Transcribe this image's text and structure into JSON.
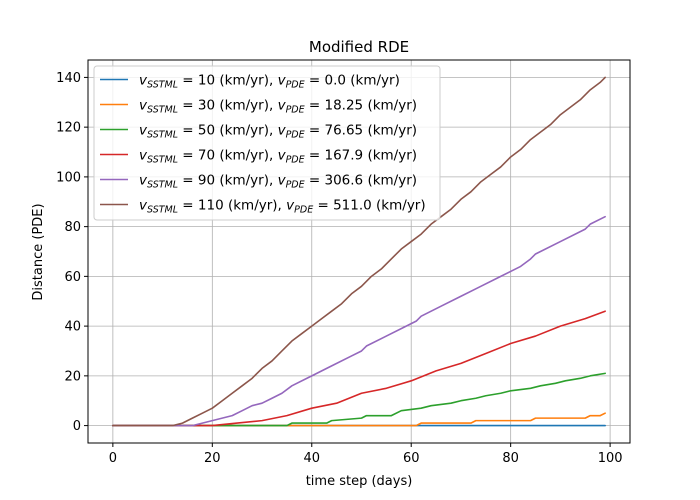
{
  "chart_data": {
    "type": "line",
    "title": "Modified RDE",
    "xlabel": "time step (days)",
    "ylabel": "Distance (PDE)",
    "xlim": [
      -5,
      104
    ],
    "ylim": [
      -7,
      147
    ],
    "xticks": [
      0,
      20,
      40,
      60,
      80,
      100
    ],
    "yticks": [
      0,
      20,
      40,
      60,
      80,
      100,
      120,
      140
    ],
    "grid": true,
    "legend_position": "upper-left",
    "series": [
      {
        "sstml": "10",
        "pde": "0.0",
        "color": "#1f77b4",
        "x": [
          0,
          99
        ],
        "y": [
          0,
          0
        ]
      },
      {
        "sstml": "30",
        "pde": "18.25",
        "color": "#ff7f0e",
        "x": [
          0,
          61,
          62,
          72,
          73,
          84,
          85,
          95,
          96,
          98,
          99
        ],
        "y": [
          0,
          0,
          1,
          1,
          2,
          2,
          3,
          3,
          4,
          4,
          5
        ]
      },
      {
        "sstml": "50",
        "pde": "76.65",
        "color": "#2ca02c",
        "x": [
          0,
          21,
          23,
          35,
          36,
          43,
          44,
          50,
          51,
          56,
          58,
          62,
          64,
          68,
          70,
          73,
          75,
          78,
          80,
          84,
          86,
          89,
          91,
          94,
          96,
          99
        ],
        "y": [
          0,
          0,
          0,
          0,
          1,
          1,
          2,
          3,
          4,
          4,
          6,
          7,
          8,
          9,
          10,
          11,
          12,
          13,
          14,
          15,
          16,
          17,
          18,
          19,
          20,
          21
        ]
      },
      {
        "sstml": "70",
        "pde": "167.9",
        "color": "#d62728",
        "x": [
          0,
          15,
          20,
          25,
          30,
          35,
          40,
          45,
          50,
          55,
          60,
          65,
          70,
          75,
          80,
          85,
          90,
          95,
          99
        ],
        "y": [
          0,
          0,
          0,
          1,
          2,
          4,
          7,
          9,
          13,
          15,
          18,
          22,
          25,
          29,
          33,
          36,
          40,
          43,
          46
        ]
      },
      {
        "sstml": "90",
        "pde": "306.6",
        "color": "#9467bd",
        "x": [
          0,
          16,
          18,
          20,
          22,
          24,
          26,
          28,
          30,
          32,
          34,
          36,
          40,
          44,
          48,
          50,
          51,
          55,
          60,
          61,
          62,
          66,
          70,
          73,
          74,
          78,
          82,
          84,
          85,
          90,
          95,
          96,
          99
        ],
        "y": [
          0,
          0,
          1,
          2,
          3,
          4,
          6,
          8,
          9,
          11,
          13,
          16,
          20,
          24,
          28,
          30,
          32,
          36,
          41,
          42,
          44,
          48,
          52,
          55,
          56,
          60,
          64,
          67,
          69,
          74,
          79,
          81,
          84
        ]
      },
      {
        "sstml": "110",
        "pde": "511.0",
        "color": "#8c564b",
        "x": [
          0,
          12,
          14,
          16,
          18,
          20,
          22,
          24,
          26,
          28,
          30,
          32,
          34,
          36,
          38,
          40,
          42,
          44,
          46,
          48,
          50,
          52,
          54,
          56,
          58,
          60,
          62,
          64,
          66,
          68,
          70,
          72,
          74,
          76,
          78,
          80,
          82,
          84,
          86,
          88,
          90,
          92,
          94,
          96,
          98,
          99
        ],
        "y": [
          0,
          0,
          1,
          3,
          5,
          7,
          10,
          13,
          16,
          19,
          23,
          26,
          30,
          34,
          37,
          40,
          43,
          46,
          49,
          53,
          56,
          60,
          63,
          67,
          71,
          74,
          77,
          81,
          84,
          87,
          91,
          94,
          98,
          101,
          104,
          108,
          111,
          115,
          118,
          121,
          125,
          128,
          131,
          135,
          138,
          140
        ]
      }
    ]
  }
}
